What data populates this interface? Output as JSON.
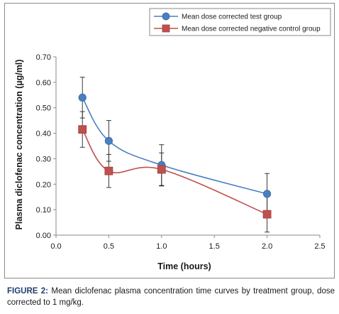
{
  "chart_data": {
    "type": "line",
    "title": "",
    "xlabel": "Time (hours)",
    "ylabel": "Plasma diclofenac concentration (µg/ml)",
    "xlim": [
      0,
      2.5
    ],
    "ylim": [
      0,
      0.7
    ],
    "x_ticks": [
      "0.0",
      "0.5",
      "1.0",
      "1.5",
      "2.0",
      "2.5"
    ],
    "y_ticks": [
      "0.00",
      "0.10",
      "0.20",
      "0.30",
      "0.40",
      "0.50",
      "0.60",
      "0.70"
    ],
    "grid": false,
    "legend_position": "top-right",
    "series": [
      {
        "name": "Mean dose corrected test group",
        "color": "#4a7fc1",
        "marker": "circle",
        "x": [
          0.25,
          0.5,
          1.0,
          2.0
        ],
        "y": [
          0.54,
          0.37,
          0.275,
          0.162
        ],
        "error": [
          0.08,
          0.08,
          0.08,
          0.08
        ]
      },
      {
        "name": "Mean dose corrected negative control group",
        "color": "#c0504d",
        "marker": "square",
        "x": [
          0.25,
          0.5,
          1.0,
          2.0
        ],
        "y": [
          0.415,
          0.252,
          0.258,
          0.082
        ],
        "error": [
          0.07,
          0.065,
          0.065,
          0.07
        ]
      }
    ]
  },
  "caption": {
    "label": "FIGURE 2:",
    "text": " Mean diclofenac plasma concentration time curves by treatment group, dose corrected to 1 mg/kg."
  }
}
